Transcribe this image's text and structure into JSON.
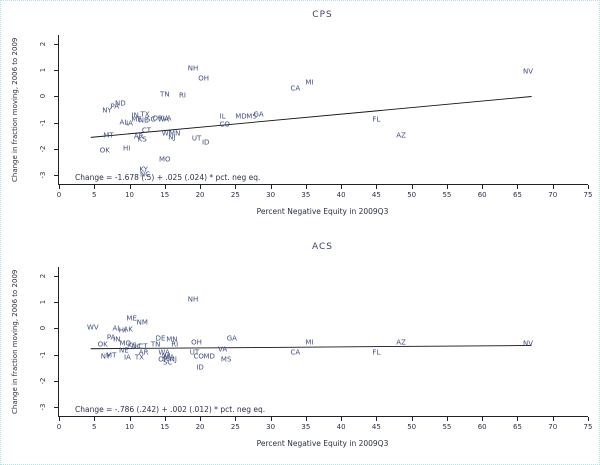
{
  "colors": {
    "state_label": "#3f4e7e",
    "axis_text": "#2b3046",
    "axis_line": "#20222e",
    "regression_line": "#141414",
    "page_border": "#aee4f2",
    "background": "#ffffff"
  },
  "chart_data": [
    {
      "type": "scatter",
      "title": "CPS",
      "xlabel": "Percent Negative Equity in 2009Q3",
      "ylabel": "Change in fraction moving, 2006 to 2009",
      "xlim": [
        0,
        75
      ],
      "ylim": [
        -3.35,
        2.35
      ],
      "xticks": [
        0,
        5,
        10,
        15,
        20,
        25,
        30,
        35,
        40,
        45,
        50,
        55,
        60,
        65,
        70,
        75
      ],
      "yticks": [
        2,
        1,
        0,
        -1,
        -2,
        -3
      ],
      "grid": false,
      "marker": "state-abbreviation-text",
      "annotation": "Change = -1.678 (.5) + .025 (.024) * pct. neg eq.",
      "regression": {
        "x1": 4.5,
        "y1": -1.566,
        "x2": 67,
        "y2": -0.003
      },
      "points": [
        {
          "label": "NV",
          "x": 66.5,
          "y": 0.95
        },
        {
          "label": "NH",
          "x": 19.0,
          "y": 1.05
        },
        {
          "label": "OH",
          "x": 20.5,
          "y": 0.65
        },
        {
          "label": "MI",
          "x": 35.5,
          "y": 0.5
        },
        {
          "label": "CA",
          "x": 33.5,
          "y": 0.28
        },
        {
          "label": "TN",
          "x": 15.0,
          "y": 0.05
        },
        {
          "label": "RI",
          "x": 17.5,
          "y": 0.0
        },
        {
          "label": "ND",
          "x": 8.7,
          "y": -0.3
        },
        {
          "label": "PA",
          "x": 7.9,
          "y": -0.42
        },
        {
          "label": "NY",
          "x": 6.8,
          "y": -0.55
        },
        {
          "label": "IN",
          "x": 10.8,
          "y": -0.75
        },
        {
          "label": "TX",
          "x": 12.2,
          "y": -0.7
        },
        {
          "label": "ME",
          "x": 11.0,
          "y": -0.9
        },
        {
          "label": "NE",
          "x": 12.0,
          "y": -0.95
        },
        {
          "label": "SC",
          "x": 13.0,
          "y": -0.92
        },
        {
          "label": "OR",
          "x": 14.0,
          "y": -0.85
        },
        {
          "label": "WA",
          "x": 14.8,
          "y": -0.92
        },
        {
          "label": "VA",
          "x": 15.3,
          "y": -0.85
        },
        {
          "label": "AL",
          "x": 9.2,
          "y": -1.0
        },
        {
          "label": "IA",
          "x": 10.0,
          "y": -1.05
        },
        {
          "label": "IL",
          "x": 23.2,
          "y": -0.78
        },
        {
          "label": "MD",
          "x": 25.8,
          "y": -0.8
        },
        {
          "label": "MS",
          "x": 27.3,
          "y": -0.78
        },
        {
          "label": "GA",
          "x": 28.3,
          "y": -0.72
        },
        {
          "label": "CO",
          "x": 23.5,
          "y": -1.08
        },
        {
          "label": "CT",
          "x": 12.4,
          "y": -1.32
        },
        {
          "label": "MT",
          "x": 7.0,
          "y": -1.5
        },
        {
          "label": "AR",
          "x": 11.3,
          "y": -1.55
        },
        {
          "label": "KS",
          "x": 11.8,
          "y": -1.68
        },
        {
          "label": "WI",
          "x": 15.2,
          "y": -1.42
        },
        {
          "label": "MN",
          "x": 16.4,
          "y": -1.45
        },
        {
          "label": "NJ",
          "x": 16.0,
          "y": -1.58
        },
        {
          "label": "UT",
          "x": 19.5,
          "y": -1.62
        },
        {
          "label": "ID",
          "x": 20.8,
          "y": -1.78
        },
        {
          "label": "OK",
          "x": 6.5,
          "y": -2.1
        },
        {
          "label": "HI",
          "x": 9.6,
          "y": -2.0
        },
        {
          "label": "MO",
          "x": 15.0,
          "y": -2.42
        },
        {
          "label": "KY",
          "x": 12.0,
          "y": -2.82
        },
        {
          "label": "NC",
          "x": 12.2,
          "y": -3.02
        },
        {
          "label": "FL",
          "x": 45.0,
          "y": -0.9
        },
        {
          "label": "AZ",
          "x": 48.5,
          "y": -1.5
        }
      ]
    },
    {
      "type": "scatter",
      "title": "ACS",
      "xlabel": "Percent Negative Equity in 2009Q3",
      "ylabel": "Change in fraction moving, 2006 to 2009",
      "xlim": [
        0,
        75
      ],
      "ylim": [
        -3.35,
        2.35
      ],
      "xticks": [
        0,
        5,
        10,
        15,
        20,
        25,
        30,
        35,
        40,
        45,
        50,
        55,
        60,
        65,
        70,
        75
      ],
      "yticks": [
        2,
        1,
        0,
        -1,
        -2,
        -3
      ],
      "grid": false,
      "marker": "state-abbreviation-text",
      "annotation": "Change = -.786 (.242) + .002 (.012) * pct. neg eq.",
      "regression": {
        "x1": 4.5,
        "y1": -0.777,
        "x2": 67,
        "y2": -0.652
      },
      "points": [
        {
          "label": "NH",
          "x": 19.0,
          "y": 1.1
        },
        {
          "label": "ME",
          "x": 10.3,
          "y": 0.35
        },
        {
          "label": "NM",
          "x": 11.8,
          "y": 0.22
        },
        {
          "label": "WV",
          "x": 4.8,
          "y": 0.02
        },
        {
          "label": "AL",
          "x": 8.2,
          "y": -0.02
        },
        {
          "label": "HI",
          "x": 9.0,
          "y": -0.08
        },
        {
          "label": "AK",
          "x": 9.8,
          "y": -0.05
        },
        {
          "label": "PA",
          "x": 7.4,
          "y": -0.38
        },
        {
          "label": "IN",
          "x": 8.2,
          "y": -0.45
        },
        {
          "label": "OK",
          "x": 6.2,
          "y": -0.65
        },
        {
          "label": "MO",
          "x": 9.4,
          "y": -0.6
        },
        {
          "label": "KS",
          "x": 10.4,
          "y": -0.68
        },
        {
          "label": "NC",
          "x": 11.0,
          "y": -0.72
        },
        {
          "label": "CT",
          "x": 11.9,
          "y": -0.7
        },
        {
          "label": "TN",
          "x": 13.7,
          "y": -0.62
        },
        {
          "label": "DE",
          "x": 14.4,
          "y": -0.4
        },
        {
          "label": "MN",
          "x": 16.0,
          "y": -0.45
        },
        {
          "label": "RI",
          "x": 16.4,
          "y": -0.62
        },
        {
          "label": "NE",
          "x": 9.2,
          "y": -0.88
        },
        {
          "label": "NY",
          "x": 6.6,
          "y": -1.08
        },
        {
          "label": "MT",
          "x": 7.4,
          "y": -1.05
        },
        {
          "label": "IA",
          "x": 9.7,
          "y": -1.12
        },
        {
          "label": "TX",
          "x": 11.4,
          "y": -1.12
        },
        {
          "label": "AR",
          "x": 12.0,
          "y": -0.95
        },
        {
          "label": "WA",
          "x": 14.9,
          "y": -0.95
        },
        {
          "label": "WI",
          "x": 15.2,
          "y": -1.08
        },
        {
          "label": "MA",
          "x": 15.6,
          "y": -1.15
        },
        {
          "label": "NJ",
          "x": 16.2,
          "y": -1.2
        },
        {
          "label": "OR",
          "x": 14.8,
          "y": -1.2
        },
        {
          "label": "SC",
          "x": 15.4,
          "y": -1.32
        },
        {
          "label": "OH",
          "x": 19.5,
          "y": -0.55
        },
        {
          "label": "UT",
          "x": 19.2,
          "y": -0.95
        },
        {
          "label": "CO",
          "x": 19.8,
          "y": -1.08
        },
        {
          "label": "MD",
          "x": 21.3,
          "y": -1.1
        },
        {
          "label": "ID",
          "x": 20.0,
          "y": -1.5
        },
        {
          "label": "MS",
          "x": 23.7,
          "y": -1.2
        },
        {
          "label": "VA",
          "x": 23.2,
          "y": -0.82
        },
        {
          "label": "GA",
          "x": 24.5,
          "y": -0.42
        },
        {
          "label": "MI",
          "x": 35.5,
          "y": -0.55
        },
        {
          "label": "CA",
          "x": 33.5,
          "y": -0.95
        },
        {
          "label": "AZ",
          "x": 48.5,
          "y": -0.55
        },
        {
          "label": "FL",
          "x": 45.0,
          "y": -0.95
        },
        {
          "label": "NV",
          "x": 66.5,
          "y": -0.6
        }
      ]
    }
  ]
}
